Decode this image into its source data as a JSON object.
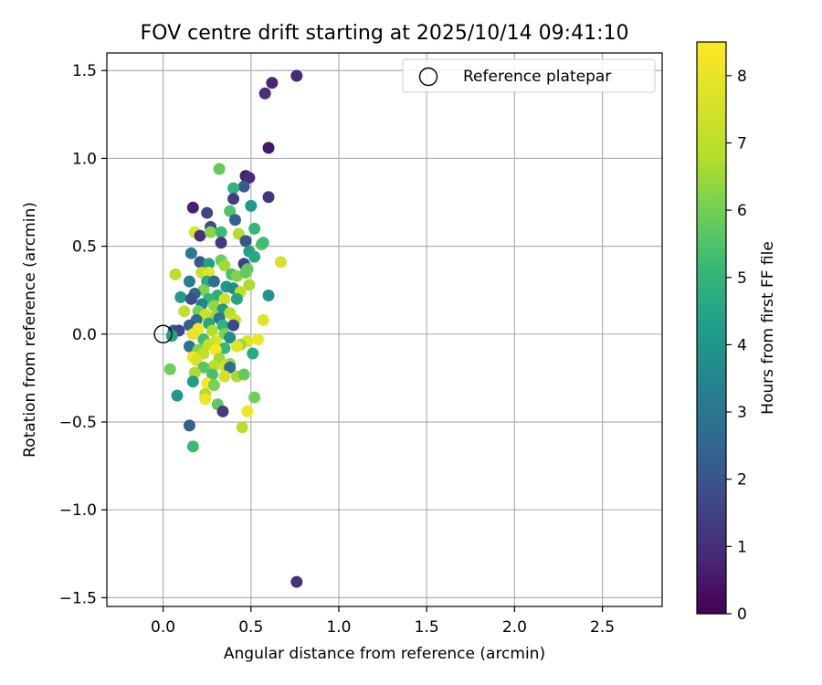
{
  "chart_data": {
    "type": "scatter",
    "title": "FOV centre drift starting at 2025/10/14 09:41:10",
    "xlabel": "Angular distance from reference (arcmin)",
    "ylabel": "Rotation from reference (arcmin)",
    "xlim": [
      -0.32,
      2.84
    ],
    "ylim": [
      -1.55,
      1.6
    ],
    "xticks": [
      0.0,
      0.5,
      1.0,
      1.5,
      2.0,
      2.5
    ],
    "xtick_labels": [
      "0.0",
      "0.5",
      "1.0",
      "1.5",
      "2.0",
      "2.5"
    ],
    "yticks": [
      -1.5,
      -1.0,
      -0.5,
      0.0,
      0.5,
      1.0,
      1.5
    ],
    "ytick_labels": [
      "−1.5",
      "−1.0",
      "−0.5",
      "0.0",
      "0.5",
      "1.0",
      "1.5"
    ],
    "grid": true,
    "legend": {
      "position": "top-right",
      "entries": [
        "Reference platepar"
      ]
    },
    "reference_point": {
      "x": 0.0,
      "y": 0.0,
      "label": "Reference platepar"
    },
    "colorbar": {
      "label": "Hours from first FF file",
      "range": [
        0,
        8.5
      ],
      "ticks": [
        0,
        1,
        2,
        3,
        4,
        5,
        6,
        7,
        8
      ],
      "tick_labels": [
        "0",
        "1",
        "2",
        "3",
        "4",
        "5",
        "6",
        "7",
        "8"
      ],
      "colormap": "viridis"
    },
    "points": [
      {
        "x": 0.76,
        "y": 1.47,
        "h": 0.9
      },
      {
        "x": 0.62,
        "y": 1.43,
        "h": 0.8
      },
      {
        "x": 0.58,
        "y": 1.37,
        "h": 1.0
      },
      {
        "x": 0.6,
        "y": 1.06,
        "h": 0.5
      },
      {
        "x": 0.47,
        "y": 0.9,
        "h": 0.6
      },
      {
        "x": 0.49,
        "y": 0.89,
        "h": 0.9
      },
      {
        "x": 0.32,
        "y": 0.94,
        "h": 5.8
      },
      {
        "x": 0.46,
        "y": 0.84,
        "h": 2.2
      },
      {
        "x": 0.4,
        "y": 0.83,
        "h": 5.0
      },
      {
        "x": 0.6,
        "y": 0.78,
        "h": 1.2
      },
      {
        "x": 0.4,
        "y": 0.77,
        "h": 1.4
      },
      {
        "x": 0.5,
        "y": 0.73,
        "h": 4.2
      },
      {
        "x": 0.17,
        "y": 0.72,
        "h": 0.7
      },
      {
        "x": 0.38,
        "y": 0.7,
        "h": 5.5
      },
      {
        "x": 0.25,
        "y": 0.69,
        "h": 1.6
      },
      {
        "x": 0.41,
        "y": 0.65,
        "h": 2.4
      },
      {
        "x": 0.27,
        "y": 0.61,
        "h": 1.8
      },
      {
        "x": 0.52,
        "y": 0.6,
        "h": 5.1
      },
      {
        "x": 0.18,
        "y": 0.58,
        "h": 7.8
      },
      {
        "x": 0.21,
        "y": 0.56,
        "h": 1.1
      },
      {
        "x": 0.27,
        "y": 0.58,
        "h": 6.3
      },
      {
        "x": 0.33,
        "y": 0.58,
        "h": 5.2
      },
      {
        "x": 0.43,
        "y": 0.57,
        "h": 6.8
      },
      {
        "x": 0.47,
        "y": 0.53,
        "h": 2.0
      },
      {
        "x": 0.33,
        "y": 0.52,
        "h": 1.3
      },
      {
        "x": 0.56,
        "y": 0.51,
        "h": 5.6
      },
      {
        "x": 0.57,
        "y": 0.52,
        "h": 5.3
      },
      {
        "x": 0.49,
        "y": 0.47,
        "h": 4.4
      },
      {
        "x": 0.16,
        "y": 0.46,
        "h": 3.1
      },
      {
        "x": 0.52,
        "y": 0.44,
        "h": 4.6
      },
      {
        "x": 0.67,
        "y": 0.41,
        "h": 7.6
      },
      {
        "x": 0.46,
        "y": 0.4,
        "h": 1.5
      },
      {
        "x": 0.21,
        "y": 0.41,
        "h": 2.1
      },
      {
        "x": 0.26,
        "y": 0.4,
        "h": 4.3
      },
      {
        "x": 0.33,
        "y": 0.42,
        "h": 5.9
      },
      {
        "x": 0.35,
        "y": 0.39,
        "h": 6.6
      },
      {
        "x": 0.48,
        "y": 0.37,
        "h": 5.7
      },
      {
        "x": 0.07,
        "y": 0.34,
        "h": 6.9
      },
      {
        "x": 0.22,
        "y": 0.35,
        "h": 7.2
      },
      {
        "x": 0.26,
        "y": 0.35,
        "h": 7.9
      },
      {
        "x": 0.39,
        "y": 0.34,
        "h": 5.4
      },
      {
        "x": 0.42,
        "y": 0.33,
        "h": 6.2
      },
      {
        "x": 0.47,
        "y": 0.35,
        "h": 5.8
      },
      {
        "x": 0.15,
        "y": 0.3,
        "h": 3.3
      },
      {
        "x": 0.25,
        "y": 0.3,
        "h": 4.7
      },
      {
        "x": 0.29,
        "y": 0.3,
        "h": 2.8
      },
      {
        "x": 0.49,
        "y": 0.28,
        "h": 6.7
      },
      {
        "x": 0.36,
        "y": 0.27,
        "h": 4.0
      },
      {
        "x": 0.4,
        "y": 0.26,
        "h": 3.6
      },
      {
        "x": 0.23,
        "y": 0.25,
        "h": 6.1
      },
      {
        "x": 0.18,
        "y": 0.23,
        "h": 2.5
      },
      {
        "x": 0.44,
        "y": 0.24,
        "h": 7.0
      },
      {
        "x": 0.31,
        "y": 0.22,
        "h": 4.8
      },
      {
        "x": 0.6,
        "y": 0.22,
        "h": 3.9
      },
      {
        "x": 0.1,
        "y": 0.21,
        "h": 4.2
      },
      {
        "x": 0.16,
        "y": 0.2,
        "h": 1.9
      },
      {
        "x": 0.26,
        "y": 0.2,
        "h": 5.0
      },
      {
        "x": 0.35,
        "y": 0.2,
        "h": 7.5
      },
      {
        "x": 0.42,
        "y": 0.2,
        "h": 4.5
      },
      {
        "x": 0.22,
        "y": 0.17,
        "h": 3.4
      },
      {
        "x": 0.29,
        "y": 0.16,
        "h": 6.4
      },
      {
        "x": 0.2,
        "y": 0.13,
        "h": 6.0
      },
      {
        "x": 0.12,
        "y": 0.13,
        "h": 7.1
      },
      {
        "x": 0.34,
        "y": 0.14,
        "h": 4.1
      },
      {
        "x": 0.38,
        "y": 0.12,
        "h": 6.9
      },
      {
        "x": 0.24,
        "y": 0.11,
        "h": 7.3
      },
      {
        "x": 0.3,
        "y": 0.1,
        "h": 6.6
      },
      {
        "x": 0.32,
        "y": 0.09,
        "h": 3.0
      },
      {
        "x": 0.19,
        "y": 0.08,
        "h": 2.7
      },
      {
        "x": 0.41,
        "y": 0.08,
        "h": 7.4
      },
      {
        "x": 0.57,
        "y": 0.08,
        "h": 7.8
      },
      {
        "x": 0.15,
        "y": 0.05,
        "h": 2.3
      },
      {
        "x": 0.26,
        "y": 0.06,
        "h": 4.6
      },
      {
        "x": 0.34,
        "y": 0.05,
        "h": 4.9
      },
      {
        "x": 0.4,
        "y": 0.05,
        "h": 1.7
      },
      {
        "x": 0.06,
        "y": 0.02,
        "h": 2.2
      },
      {
        "x": 0.09,
        "y": 0.02,
        "h": 1.6
      },
      {
        "x": 0.2,
        "y": 0.03,
        "h": 8.3
      },
      {
        "x": 0.28,
        "y": 0.02,
        "h": 6.8
      },
      {
        "x": 0.17,
        "y": 0.0,
        "h": 8.0
      },
      {
        "x": 0.35,
        "y": 0.0,
        "h": 6.1
      },
      {
        "x": 0.05,
        "y": -0.01,
        "h": 4.4
      },
      {
        "x": 0.38,
        "y": -0.02,
        "h": 3.7
      },
      {
        "x": 0.23,
        "y": -0.03,
        "h": 5.3
      },
      {
        "x": 0.3,
        "y": -0.04,
        "h": 7.6
      },
      {
        "x": 0.48,
        "y": -0.04,
        "h": 7.8
      },
      {
        "x": 0.54,
        "y": -0.03,
        "h": 8.1
      },
      {
        "x": 0.26,
        "y": -0.06,
        "h": 7.2
      },
      {
        "x": 0.44,
        "y": -0.06,
        "h": 6.4
      },
      {
        "x": 0.15,
        "y": -0.07,
        "h": 2.9
      },
      {
        "x": 0.35,
        "y": -0.08,
        "h": 5.1
      },
      {
        "x": 0.42,
        "y": -0.07,
        "h": 7.9
      },
      {
        "x": 0.2,
        "y": -0.09,
        "h": 6.2
      },
      {
        "x": 0.3,
        "y": -0.09,
        "h": 8.4
      },
      {
        "x": 0.23,
        "y": -0.11,
        "h": 7.0
      },
      {
        "x": 0.51,
        "y": -0.11,
        "h": 4.7
      },
      {
        "x": 0.17,
        "y": -0.13,
        "h": 8.2
      },
      {
        "x": 0.19,
        "y": -0.15,
        "h": 7.7
      },
      {
        "x": 0.32,
        "y": -0.14,
        "h": 6.5
      },
      {
        "x": 0.38,
        "y": -0.17,
        "h": 6.3
      },
      {
        "x": 0.29,
        "y": -0.18,
        "h": 6.9
      },
      {
        "x": 0.23,
        "y": -0.19,
        "h": 5.6
      },
      {
        "x": 0.35,
        "y": -0.18,
        "h": 7.4
      },
      {
        "x": 0.38,
        "y": -0.19,
        "h": 2.6
      },
      {
        "x": 0.04,
        "y": -0.2,
        "h": 5.9
      },
      {
        "x": 0.18,
        "y": -0.22,
        "h": 6.7
      },
      {
        "x": 0.28,
        "y": -0.23,
        "h": 5.4
      },
      {
        "x": 0.35,
        "y": -0.24,
        "h": 7.5
      },
      {
        "x": 0.42,
        "y": -0.24,
        "h": 6.6
      },
      {
        "x": 0.46,
        "y": -0.23,
        "h": 5.8
      },
      {
        "x": 0.17,
        "y": -0.27,
        "h": 4.3
      },
      {
        "x": 0.25,
        "y": -0.28,
        "h": 8.5
      },
      {
        "x": 0.29,
        "y": -0.29,
        "h": 6.1
      },
      {
        "x": 0.24,
        "y": -0.34,
        "h": 6.8
      },
      {
        "x": 0.08,
        "y": -0.35,
        "h": 4.0
      },
      {
        "x": 0.52,
        "y": -0.36,
        "h": 6.0
      },
      {
        "x": 0.24,
        "y": -0.37,
        "h": 8.1
      },
      {
        "x": 0.31,
        "y": -0.4,
        "h": 5.7
      },
      {
        "x": 0.34,
        "y": -0.44,
        "h": 1.4
      },
      {
        "x": 0.48,
        "y": -0.44,
        "h": 8.2
      },
      {
        "x": 0.15,
        "y": -0.52,
        "h": 2.4
      },
      {
        "x": 0.45,
        "y": -0.53,
        "h": 6.9
      },
      {
        "x": 0.17,
        "y": -0.64,
        "h": 5.2
      },
      {
        "x": 0.76,
        "y": -1.41,
        "h": 1.1
      }
    ]
  }
}
